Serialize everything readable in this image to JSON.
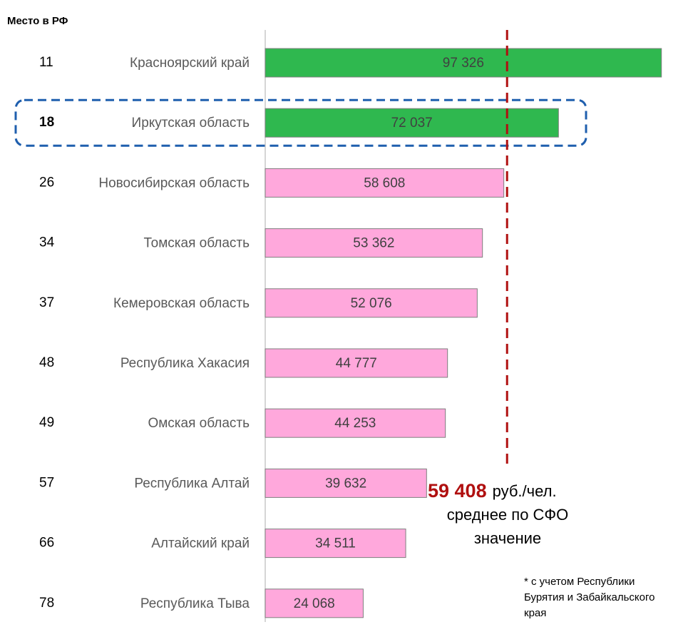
{
  "chart_data": {
    "type": "bar",
    "orientation": "horizontal",
    "rank_header": "Место в РФ",
    "ranks": [
      11,
      18,
      26,
      34,
      37,
      48,
      49,
      57,
      66,
      78
    ],
    "categories": [
      "Красноярский край",
      "Иркутская область",
      "Новосибирская область",
      "Томская область",
      "Кемеровская область",
      "Республика Хакасия",
      "Омская область",
      "Республика Алтай",
      "Алтайский край",
      "Республика Тыва"
    ],
    "values": [
      97326,
      72037,
      58608,
      53362,
      52076,
      44777,
      44253,
      39632,
      34511,
      24068
    ],
    "value_labels": [
      "97 326",
      "72 037",
      "58 608",
      "53 362",
      "52 076",
      "44 777",
      "44 253",
      "39 632",
      "34 511",
      "24 068"
    ],
    "colors": [
      "#2fb84f",
      "#2fb84f",
      "#ffa8dc",
      "#ffa8dc",
      "#ffa8dc",
      "#ffa8dc",
      "#ffa8dc",
      "#ffa8dc",
      "#ffa8dc",
      "#ffa8dc"
    ],
    "xlim": [
      0,
      100000
    ],
    "highlight": 1,
    "reference_line": {
      "value": 59408,
      "label": "59 408",
      "unit": "руб./чел.",
      "text": [
        "среднее по СФО",
        "значение"
      ],
      "color": "#b01010"
    },
    "footnote": [
      "* с учетом Республики",
      "Бурятия и Забайкальского",
      "края"
    ]
  }
}
